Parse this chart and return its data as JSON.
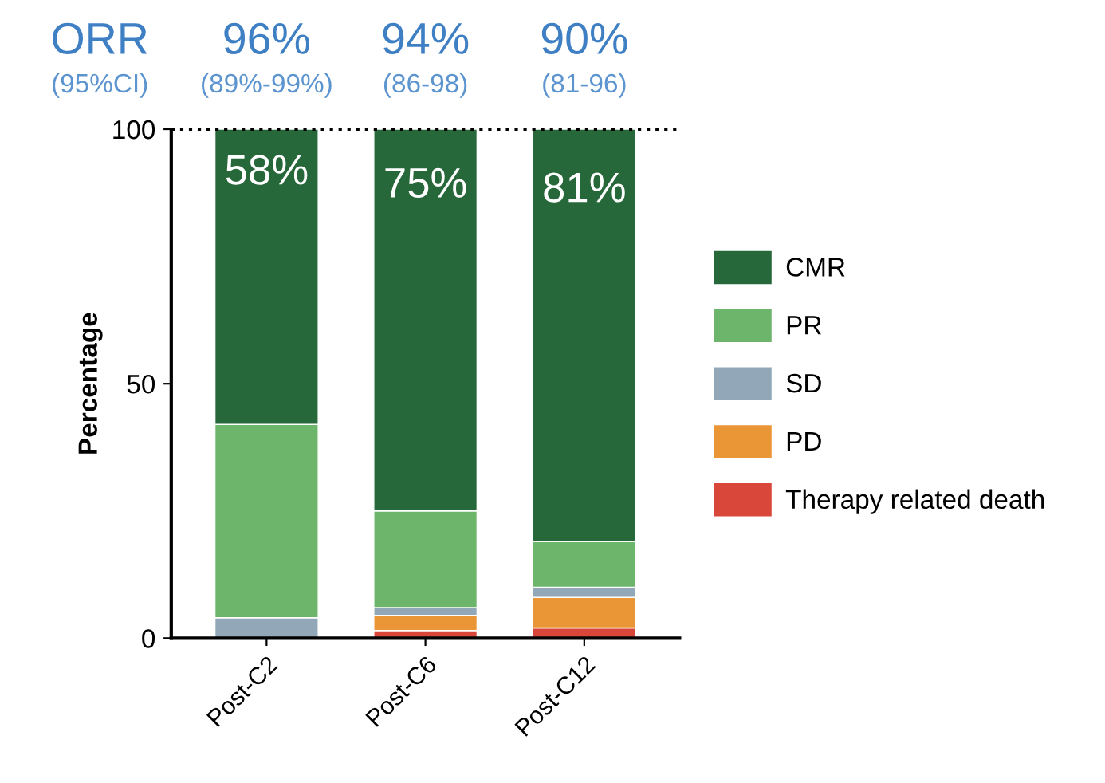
{
  "chart_data": {
    "type": "bar",
    "stacked": true,
    "ylabel": "Percentage",
    "categories": [
      "Post-C2",
      "Post-C6",
      "Post-C12"
    ],
    "series": [
      {
        "name": "Therapy related death",
        "color": "#d9473b",
        "values": [
          0,
          1.5,
          2
        ]
      },
      {
        "name": "PD",
        "color": "#eb9636",
        "values": [
          0,
          3,
          6
        ]
      },
      {
        "name": "SD",
        "color": "#92a8b8",
        "values": [
          4,
          1.5,
          2
        ]
      },
      {
        "name": "PR",
        "color": "#6db56b",
        "values": [
          38,
          19,
          9
        ]
      },
      {
        "name": "CMR",
        "color": "#27683a",
        "values": [
          58,
          75,
          81
        ],
        "value_labels": [
          "58%",
          "75%",
          "81%"
        ]
      }
    ],
    "ylim": [
      0,
      100
    ],
    "yticks": [
      0,
      50,
      100
    ],
    "grid": false,
    "legend": "right",
    "ref_lines": [
      {
        "axis": "y",
        "value": 100,
        "line_style": "dotted",
        "color": "#000000"
      }
    ],
    "annotations": [
      "ORR",
      "(95%CI)",
      "96%",
      "(89%-99%)",
      "94%",
      "(86-98)",
      "90%",
      "(81-96)"
    ]
  }
}
